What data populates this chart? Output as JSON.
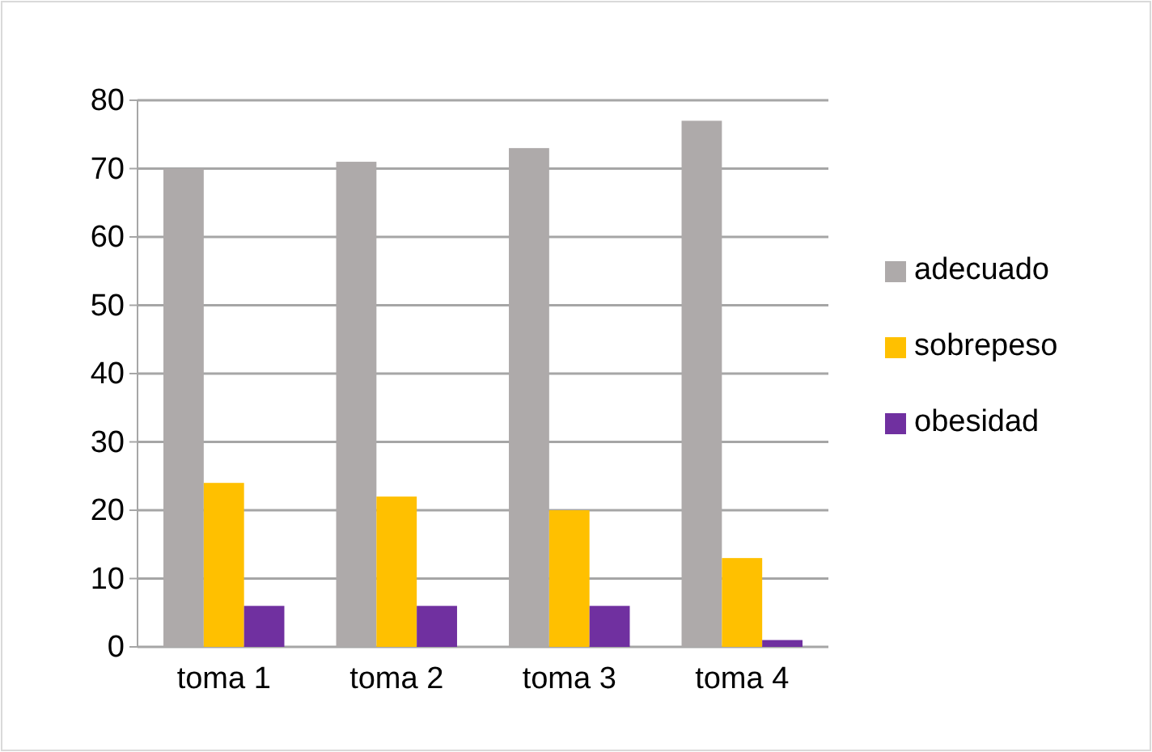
{
  "chart_data": {
    "type": "bar",
    "categories": [
      "toma 1",
      "toma 2",
      "toma 3",
      "toma 4"
    ],
    "series": [
      {
        "name": "adecuado",
        "color": "#aeaaaa",
        "values": [
          70,
          71,
          73,
          77
        ]
      },
      {
        "name": "sobrepeso",
        "color": "#ffc000",
        "values": [
          24,
          22,
          20,
          13
        ]
      },
      {
        "name": "obesidad",
        "color": "#7030a0",
        "values": [
          6,
          6,
          6,
          1
        ]
      }
    ],
    "ylim": [
      0,
      80
    ],
    "yticks": [
      0,
      10,
      20,
      30,
      40,
      50,
      60,
      70,
      80
    ],
    "grid": "y",
    "legend": "right"
  }
}
